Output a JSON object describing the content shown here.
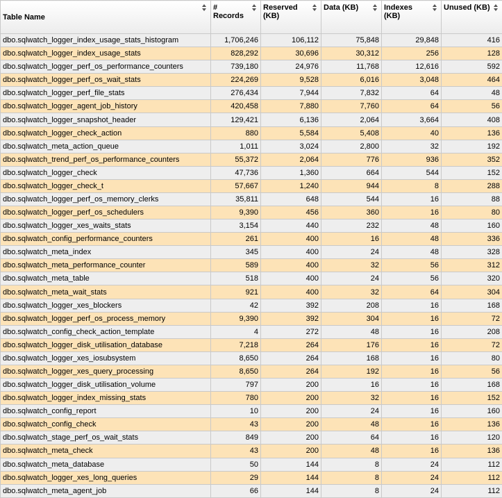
{
  "columns": [
    {
      "label": "Table Name"
    },
    {
      "label": "# Records"
    },
    {
      "label": "Reserved (KB)"
    },
    {
      "label": "Data (KB)"
    },
    {
      "label": "Indexes (KB)"
    },
    {
      "label": "Unused (KB)"
    }
  ],
  "rows": [
    [
      "dbo.sqlwatch_logger_index_usage_stats_histogram",
      "1,706,246",
      "106,112",
      "75,848",
      "29,848",
      "416"
    ],
    [
      "dbo.sqlwatch_logger_index_usage_stats",
      "828,292",
      "30,696",
      "30,312",
      "256",
      "128"
    ],
    [
      "dbo.sqlwatch_logger_perf_os_performance_counters",
      "739,180",
      "24,976",
      "11,768",
      "12,616",
      "592"
    ],
    [
      "dbo.sqlwatch_logger_perf_os_wait_stats",
      "224,269",
      "9,528",
      "6,016",
      "3,048",
      "464"
    ],
    [
      "dbo.sqlwatch_logger_perf_file_stats",
      "276,434",
      "7,944",
      "7,832",
      "64",
      "48"
    ],
    [
      "dbo.sqlwatch_logger_agent_job_history",
      "420,458",
      "7,880",
      "7,760",
      "64",
      "56"
    ],
    [
      "dbo.sqlwatch_logger_snapshot_header",
      "129,421",
      "6,136",
      "2,064",
      "3,664",
      "408"
    ],
    [
      "dbo.sqlwatch_logger_check_action",
      "880",
      "5,584",
      "5,408",
      "40",
      "136"
    ],
    [
      "dbo.sqlwatch_meta_action_queue",
      "1,011",
      "3,024",
      "2,800",
      "32",
      "192"
    ],
    [
      "dbo.sqlwatch_trend_perf_os_performance_counters",
      "55,372",
      "2,064",
      "776",
      "936",
      "352"
    ],
    [
      "dbo.sqlwatch_logger_check",
      "47,736",
      "1,360",
      "664",
      "544",
      "152"
    ],
    [
      "dbo.sqlwatch_logger_check_t",
      "57,667",
      "1,240",
      "944",
      "8",
      "288"
    ],
    [
      "dbo.sqlwatch_logger_perf_os_memory_clerks",
      "35,811",
      "648",
      "544",
      "16",
      "88"
    ],
    [
      "dbo.sqlwatch_logger_perf_os_schedulers",
      "9,390",
      "456",
      "360",
      "16",
      "80"
    ],
    [
      "dbo.sqlwatch_logger_xes_waits_stats",
      "3,154",
      "440",
      "232",
      "48",
      "160"
    ],
    [
      "dbo.sqlwatch_config_performance_counters",
      "261",
      "400",
      "16",
      "48",
      "336"
    ],
    [
      "dbo.sqlwatch_meta_index",
      "345",
      "400",
      "24",
      "48",
      "328"
    ],
    [
      "dbo.sqlwatch_meta_performance_counter",
      "589",
      "400",
      "32",
      "56",
      "312"
    ],
    [
      "dbo.sqlwatch_meta_table",
      "518",
      "400",
      "24",
      "56",
      "320"
    ],
    [
      "dbo.sqlwatch_meta_wait_stats",
      "921",
      "400",
      "32",
      "64",
      "304"
    ],
    [
      "dbo.sqlwatch_logger_xes_blockers",
      "42",
      "392",
      "208",
      "16",
      "168"
    ],
    [
      "dbo.sqlwatch_logger_perf_os_process_memory",
      "9,390",
      "392",
      "304",
      "16",
      "72"
    ],
    [
      "dbo.sqlwatch_config_check_action_template",
      "4",
      "272",
      "48",
      "16",
      "208"
    ],
    [
      "dbo.sqlwatch_logger_disk_utilisation_database",
      "7,218",
      "264",
      "176",
      "16",
      "72"
    ],
    [
      "dbo.sqlwatch_logger_xes_iosubsystem",
      "8,650",
      "264",
      "168",
      "16",
      "80"
    ],
    [
      "dbo.sqlwatch_logger_xes_query_processing",
      "8,650",
      "264",
      "192",
      "16",
      "56"
    ],
    [
      "dbo.sqlwatch_logger_disk_utilisation_volume",
      "797",
      "200",
      "16",
      "16",
      "168"
    ],
    [
      "dbo.sqlwatch_logger_index_missing_stats",
      "780",
      "200",
      "32",
      "16",
      "152"
    ],
    [
      "dbo.sqlwatch_config_report",
      "10",
      "200",
      "24",
      "16",
      "160"
    ],
    [
      "dbo.sqlwatch_config_check",
      "43",
      "200",
      "48",
      "16",
      "136"
    ],
    [
      "dbo.sqlwatch_stage_perf_os_wait_stats",
      "849",
      "200",
      "64",
      "16",
      "120"
    ],
    [
      "dbo.sqlwatch_meta_check",
      "43",
      "200",
      "48",
      "16",
      "136"
    ],
    [
      "dbo.sqlwatch_meta_database",
      "50",
      "144",
      "8",
      "24",
      "112"
    ],
    [
      "dbo.sqlwatch_logger_xes_long_queries",
      "29",
      "144",
      "8",
      "24",
      "112"
    ],
    [
      "dbo.sqlwatch_meta_agent_job",
      "66",
      "144",
      "8",
      "24",
      "112"
    ]
  ],
  "colors": {
    "row_odd": "#eeeeee",
    "row_even": "#fde3b7",
    "grid_line": "#c9c9c9"
  },
  "icons": {
    "sort": "sort-arrows-icon"
  }
}
